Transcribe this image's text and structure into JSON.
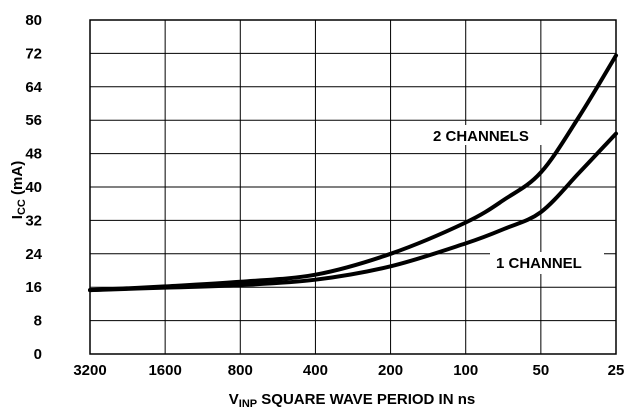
{
  "chart_data": {
    "type": "line",
    "title": "",
    "xlabel_main": "V",
    "xlabel_sub": "INP",
    "xlabel_rest": " SQUARE WAVE PERIOD IN ns",
    "ylabel_main": "I",
    "ylabel_sub": "CC",
    "ylabel_rest": " (mA)",
    "x_categories": [
      "3200",
      "1600",
      "800",
      "400",
      "200",
      "100",
      "50",
      "25"
    ],
    "y_ticks": [
      "0",
      "8",
      "16",
      "24",
      "32",
      "40",
      "48",
      "56",
      "64",
      "72",
      "80"
    ],
    "ylim": [
      0,
      80
    ],
    "grid": true,
    "series": [
      {
        "name": "2 CHANNELS",
        "x": [
          3200,
          1600,
          800,
          400,
          200,
          100,
          70,
          50,
          35,
          25
        ],
        "y": [
          15.3,
          16.2,
          17.3,
          19.0,
          24.0,
          31.5,
          37.0,
          43.5,
          57.0,
          71.5
        ]
      },
      {
        "name": "1 CHANNEL",
        "x": [
          3200,
          1600,
          800,
          400,
          200,
          100,
          70,
          50,
          35,
          25
        ],
        "y": [
          15.3,
          15.9,
          16.5,
          17.8,
          21.0,
          26.5,
          30.0,
          34.0,
          43.5,
          52.8
        ]
      }
    ]
  }
}
